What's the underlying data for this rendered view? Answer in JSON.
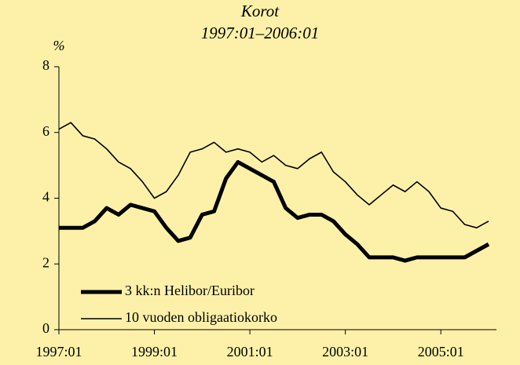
{
  "chart_data": {
    "type": "line",
    "title": "Korot",
    "subtitle": "1997:01–2006:01",
    "y_label": "%",
    "categories": [
      "1997:01",
      null,
      null,
      null,
      null,
      null,
      null,
      null,
      "1999:01",
      null,
      null,
      null,
      null,
      null,
      null,
      null,
      "2001:01",
      null,
      null,
      null,
      null,
      null,
      null,
      null,
      "2003:01",
      null,
      null,
      null,
      null,
      null,
      null,
      null,
      "2005:01",
      null,
      null,
      null,
      null
    ],
    "series": [
      {
        "name": "3 kk:n Helibor/Euribor",
        "color": "#000000",
        "width": 5,
        "values": [
          3.1,
          3.1,
          3.1,
          3.3,
          3.7,
          3.5,
          3.8,
          3.7,
          3.6,
          3.1,
          2.7,
          2.8,
          3.5,
          3.6,
          4.6,
          5.1,
          4.9,
          4.7,
          4.5,
          3.7,
          3.4,
          3.5,
          3.5,
          3.3,
          2.9,
          2.6,
          2.2,
          2.2,
          2.2,
          2.1,
          2.2,
          2.2,
          2.2,
          2.2,
          2.2,
          2.4,
          2.6
        ]
      },
      {
        "name": "10 vuoden obligaatiokorko",
        "color": "#000000",
        "width": 1.6,
        "values": [
          6.1,
          6.3,
          5.9,
          5.8,
          5.5,
          5.1,
          4.9,
          4.5,
          4.0,
          4.2,
          4.7,
          5.4,
          5.5,
          5.7,
          5.4,
          5.5,
          5.4,
          5.1,
          5.3,
          5.0,
          4.9,
          5.2,
          5.4,
          4.8,
          4.5,
          4.1,
          3.8,
          4.1,
          4.4,
          4.2,
          4.5,
          4.2,
          3.7,
          3.6,
          3.2,
          3.1,
          3.3
        ]
      }
    ],
    "ylim": [
      0,
      8
    ],
    "yticks": [
      0,
      2,
      4,
      6,
      8
    ],
    "grid": false,
    "legend": "lower left"
  }
}
